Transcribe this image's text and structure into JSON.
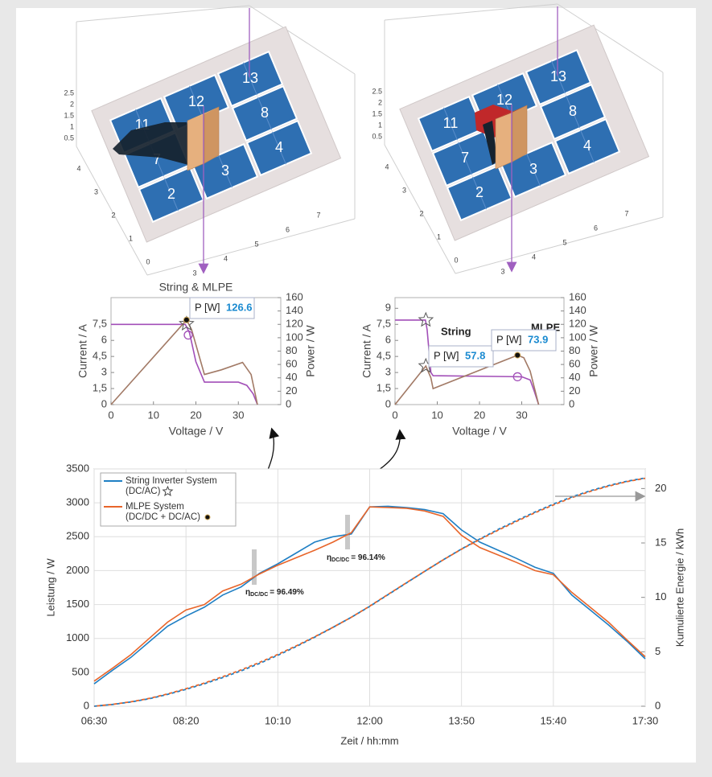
{
  "scenes": [
    {
      "panels": [
        "2",
        "3",
        "4",
        "7",
        "8",
        "11",
        "12",
        "13"
      ],
      "zticks": [
        "2.5",
        "2",
        "1.5",
        "1",
        "0.5"
      ],
      "yticks": [
        "4",
        "3",
        "2",
        "1",
        "0"
      ],
      "xticks": [
        "3",
        "4",
        "5",
        "6",
        "7"
      ]
    },
    {
      "panels": [
        "2",
        "3",
        "4",
        "7",
        "8",
        "11",
        "12",
        "13"
      ],
      "zticks": [
        "2.5",
        "2",
        "1.5",
        "1",
        "0.5"
      ],
      "yticks": [
        "4",
        "3",
        "2",
        "1",
        "0"
      ],
      "xticks": [
        "3",
        "4",
        "5",
        "6",
        "7"
      ]
    }
  ],
  "chart_data": [
    {
      "type": "line",
      "title": "String & MLPE",
      "xlabel": "Voltage / V",
      "ylabel": "Current / A",
      "y2label": "Power / W",
      "xlim": [
        0,
        40
      ],
      "xticks": [
        0,
        10,
        20,
        30
      ],
      "ylim": [
        0,
        10
      ],
      "yticks": [
        0,
        {
          "value": 1.5,
          "label": "1,5"
        },
        3,
        {
          "value": 4.5,
          "label": "4,5"
        },
        6,
        {
          "value": 7.5,
          "label": "7,5"
        }
      ],
      "y2lim": [
        0,
        160
      ],
      "y2ticks": [
        0,
        20,
        40,
        60,
        80,
        100,
        120,
        140,
        160
      ],
      "series": [
        {
          "color": "#a24fb8",
          "x": [
            0,
            17.5,
            18.5,
            20,
            22,
            30,
            32,
            33.5,
            34.5
          ],
          "values": [
            7.5,
            7.5,
            6.7,
            4,
            2.1,
            2.1,
            1.8,
            1,
            0
          ]
        },
        {
          "color": "#a27a66",
          "axis": "y2",
          "x": [
            0,
            17.8,
            19,
            22,
            26,
            31,
            33,
            34.5
          ],
          "values": [
            0,
            126.6,
            112,
            45,
            52,
            63,
            45,
            0
          ]
        }
      ],
      "markers": [
        {
          "shape": "circle",
          "axis": "y",
          "x": 18.2,
          "y": 6.5
        },
        {
          "shape": "star",
          "axis": "y",
          "x": 17.8,
          "y": 7.55
        },
        {
          "shape": "dot",
          "axis": "y2",
          "x": 17.8,
          "y": 126.6
        }
      ],
      "annotations": [
        {
          "label": "P [W]",
          "value": 126.6
        }
      ]
    },
    {
      "type": "line",
      "xlabel": "Voltage / V",
      "ylabel": "Current / A",
      "y2label": "Power / W",
      "xlim": [
        0,
        40
      ],
      "xticks": [
        0,
        10,
        20,
        30
      ],
      "ylim": [
        0,
        10
      ],
      "yticks": [
        0,
        {
          "value": 1.5,
          "label": "1,5"
        },
        3,
        {
          "value": 4.5,
          "label": "4,5"
        },
        6,
        {
          "value": 7.5,
          "label": "7,5"
        },
        9
      ],
      "y2lim": [
        0,
        160
      ],
      "y2ticks": [
        0,
        20,
        40,
        60,
        80,
        100,
        120,
        140,
        160
      ],
      "series": [
        {
          "color": "#a24fb8",
          "x": [
            0,
            7.2,
            7.6,
            8.5,
            9,
            30,
            32,
            33,
            34
          ],
          "values": [
            7.9,
            7.9,
            7,
            3,
            2.7,
            2.6,
            2.3,
            1.2,
            0
          ]
        },
        {
          "color": "#a27a66",
          "axis": "y2",
          "x": [
            0,
            7.3,
            8.5,
            9,
            29,
            30.5,
            32,
            34
          ],
          "values": [
            0,
            57.8,
            40,
            24,
            73.9,
            70,
            50,
            0
          ]
        }
      ],
      "markers": [
        {
          "shape": "star",
          "axis": "y",
          "x": 7.3,
          "y": 7.9
        },
        {
          "shape": "star",
          "axis": "y",
          "x": 7.3,
          "y": 3.6
        },
        {
          "shape": "circle",
          "axis": "y",
          "x": 29,
          "y": 2.6
        },
        {
          "shape": "dot",
          "axis": "y2",
          "x": 29,
          "y": 73.9
        }
      ],
      "annotations": [
        {
          "text": "String"
        },
        {
          "text": "MLPE"
        },
        {
          "label": "P [W]",
          "value": 57.8
        },
        {
          "label": "P [W]",
          "value": 73.9
        }
      ]
    },
    {
      "type": "line",
      "xlabel": "Zeit / hh:mm",
      "ylabel": "Leistung / W",
      "y2label": "Kumulierte Energie / kWh",
      "x": [
        "06:30",
        "06:52",
        "07:14",
        "07:36",
        "07:58",
        "08:20",
        "08:42",
        "09:04",
        "09:26",
        "09:48",
        "10:10",
        "10:32",
        "10:54",
        "11:16",
        "11:38",
        "12:00",
        "12:22",
        "12:44",
        "13:06",
        "13:28",
        "13:50",
        "14:12",
        "14:34",
        "14:56",
        "15:18",
        "15:40",
        "16:02",
        "16:24",
        "16:46",
        "17:08",
        "17:30"
      ],
      "xticks": [
        "06:30",
        "08:20",
        "10:10",
        "12:00",
        "13:50",
        "15:40",
        "17:30"
      ],
      "ylim": [
        0,
        3500
      ],
      "yticks": [
        0,
        500,
        1000,
        1500,
        2000,
        2500,
        3000,
        3500
      ],
      "y2lim": [
        0,
        21.8
      ],
      "y2ticks": [
        0,
        5,
        10,
        15,
        20
      ],
      "grid": true,
      "legend": "upper left",
      "series": [
        {
          "name": "String Inverter System",
          "name_line2": "(DC/AC)",
          "marker": "star",
          "color": "#1f7fc4",
          "values": [
            330,
            530,
            720,
            950,
            1180,
            1330,
            1460,
            1640,
            1760,
            1960,
            2100,
            2260,
            2420,
            2500,
            2540,
            2940,
            2950,
            2930,
            2900,
            2840,
            2600,
            2420,
            2300,
            2180,
            2050,
            1960,
            1640,
            1420,
            1200,
            960,
            700
          ]
        },
        {
          "name": "MLPE System",
          "name_line2": "(DC/DC + DC/AC)",
          "marker": "dot",
          "color": "#e8652a",
          "values": [
            370,
            560,
            760,
            1000,
            1240,
            1420,
            1500,
            1700,
            1800,
            1950,
            2080,
            2190,
            2300,
            2420,
            2560,
            2940,
            2930,
            2920,
            2880,
            2800,
            2520,
            2340,
            2230,
            2120,
            2000,
            1940,
            1680,
            1460,
            1240,
            980,
            730
          ]
        },
        {
          "color": "#1f7fc4",
          "axis": "y2",
          "linestyle": "dashed",
          "values": [
            0,
            0.16,
            0.39,
            0.69,
            1.09,
            1.55,
            2.06,
            2.63,
            3.25,
            3.93,
            4.68,
            5.48,
            6.34,
            7.24,
            8.17,
            9.17,
            10.25,
            11.33,
            12.4,
            13.45,
            14.45,
            15.37,
            16.24,
            17.06,
            17.84,
            18.57,
            19.23,
            19.79,
            20.27,
            20.67,
            20.97
          ]
        },
        {
          "color": "#e8652a",
          "axis": "y2",
          "linestyle": "dashed",
          "values": [
            0,
            0.17,
            0.41,
            0.72,
            1.13,
            1.61,
            2.13,
            2.71,
            3.34,
            4.02,
            4.76,
            5.54,
            6.38,
            7.25,
            8.17,
            9.19,
            10.27,
            11.34,
            12.4,
            13.44,
            14.43,
            15.33,
            16.18,
            16.99,
            17.77,
            18.49,
            19.16,
            19.73,
            20.22,
            20.63,
            20.94
          ]
        }
      ],
      "annotations": [
        {
          "symbol": "η",
          "subscript": "DC/DC",
          "text": "= 96.49%"
        },
        {
          "symbol": "η",
          "subscript": "DC/DC",
          "text": "= 96.14%"
        }
      ]
    }
  ]
}
